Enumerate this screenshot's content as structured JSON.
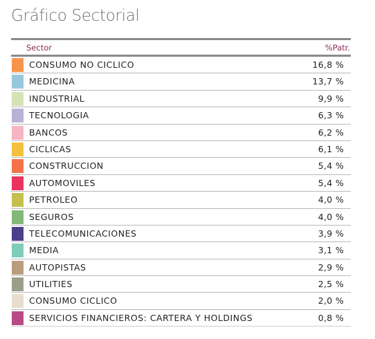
{
  "title": "Gráfico Sectorial",
  "columns": {
    "sector": "Sector",
    "pct": "%Patr."
  },
  "chart_data": {
    "type": "table",
    "title": "Gráfico Sectorial",
    "columns": [
      "Sector",
      "%Patr."
    ],
    "rows": [
      {
        "sector": "CONSUMO NO CICLICO",
        "value": 16.8,
        "label": "16,8 %",
        "color": "#f6954a"
      },
      {
        "sector": "MEDICINA",
        "value": 13.7,
        "label": "13,7 %",
        "color": "#98c7dc"
      },
      {
        "sector": "INDUSTRIAL",
        "value": 9.9,
        "label": "9,9 %",
        "color": "#d6e3b5"
      },
      {
        "sector": "TECNOLOGIA",
        "value": 6.3,
        "label": "6,3 %",
        "color": "#bab2d6"
      },
      {
        "sector": "BANCOS",
        "value": 6.2,
        "label": "6,2 %",
        "color": "#f6b5c3"
      },
      {
        "sector": "CICLICAS",
        "value": 6.1,
        "label": "6,1 %",
        "color": "#f4c040"
      },
      {
        "sector": "CONSTRUCCION",
        "value": 5.4,
        "label": "5,4 %",
        "color": "#f3724a"
      },
      {
        "sector": "AUTOMOVILES",
        "value": 5.4,
        "label": "5,4 %",
        "color": "#e8345f"
      },
      {
        "sector": "PETROLEO",
        "value": 4.0,
        "label": "4,0 %",
        "color": "#c5c04e"
      },
      {
        "sector": "SEGUROS",
        "value": 4.0,
        "label": "4,0 %",
        "color": "#84b879"
      },
      {
        "sector": "TELECOMUNICACIONES",
        "value": 3.9,
        "label": "3,9 %",
        "color": "#4b3f8c"
      },
      {
        "sector": "MEDIA",
        "value": 3.1,
        "label": "3,1 %",
        "color": "#7fcdb8"
      },
      {
        "sector": "AUTOPISTAS",
        "value": 2.9,
        "label": "2,9 %",
        "color": "#b99d7c"
      },
      {
        "sector": "UTILITIES",
        "value": 2.5,
        "label": "2,5 %",
        "color": "#9b9f89"
      },
      {
        "sector": "CONSUMO CICLICO",
        "value": 2.0,
        "label": "2,0 %",
        "color": "#e9ddcf"
      },
      {
        "sector": "SERVICIOS FINANCIEROS: CARTERA Y HOLDINGS",
        "value": 0.8,
        "label": "0,8 %",
        "color": "#b84a88"
      }
    ]
  }
}
